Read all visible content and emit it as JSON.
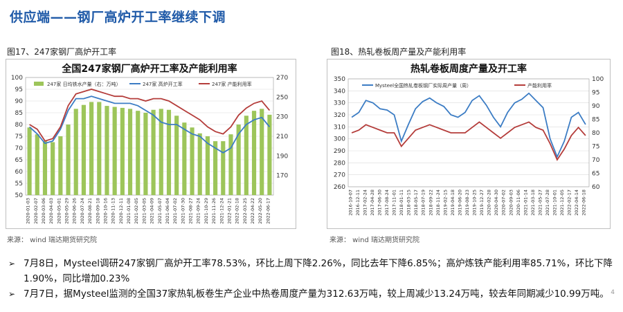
{
  "slide": {
    "title": "供应端——钢厂高炉开工率继续下调",
    "page_number": "4"
  },
  "left_figure": {
    "caption": "图17、247家钢厂高炉开工率",
    "source": "来源：  wind    瑞达期货研究院"
  },
  "right_figure": {
    "caption": "图18、热轧卷板周产量及产能利用率",
    "source": "来源：  wind    瑞达期货研究院"
  },
  "bullets": [
    "7月8日，Mysteel调研247家钢厂高炉开工率78.53%，环比上周下降2.26%，同比去年下降6.85%；高炉炼铁产能利用率85.71%，环比下降1.90%，同比增加0.23%",
    "7月7日，据Mysteel监测的全国37家热轧板卷生产企业中热卷周度产量为312.63万吨，较上周减少13.24万吨，较去年同期减少10.99万吨。"
  ],
  "colors": {
    "title_blue": "#1f5aa8",
    "bar_green": "#9dc55a",
    "line_blue": "#3b7cc4",
    "line_red": "#b43c3a"
  },
  "chart_data": [
    {
      "type": "bar+line",
      "title": "全国247家钢厂高炉开工率及产能利用率",
      "legend": [
        "247家 日均铁水产量（右：万吨）",
        "247家 高炉开工率",
        "247家 产能利用率"
      ],
      "legend_placement": "top",
      "y_left": {
        "ticks": [
          50,
          55,
          60,
          65,
          70,
          75,
          80,
          85,
          90,
          95,
          100
        ],
        "range": [
          50,
          100
        ]
      },
      "y_right": {
        "ticks": [
          170,
          190,
          210,
          230,
          250,
          270
        ],
        "range": [
          150,
          270
        ]
      },
      "x_ticks": [
        "2020-01-03",
        "2020-02-07",
        "2020-03-06",
        "2020-04-03",
        "2020-05-01",
        "2020-05-29",
        "2020-06-26",
        "2020-07-24",
        "2020-08-21",
        "2020-09-18",
        "2020-10-16",
        "2020-11-13",
        "2020-12-11",
        "2021-01-08",
        "2021-02-05",
        "2021-03-05",
        "2021-04-09",
        "2021-05-07",
        "2021-06-04",
        "2021-07-02",
        "2021-07-30",
        "2021-08-27",
        "2021-09-24",
        "2021-10-29",
        "2021-11-26",
        "2021-12-24",
        "2022-01-21",
        "2022-02-18",
        "2022-03-25",
        "2022-04-22",
        "2022-05-20",
        "2022-06-17"
      ],
      "series": [
        {
          "name": "247家 日均铁水产量（右：万吨）",
          "axis": "right",
          "values": [
            219,
            212,
            205,
            204,
            210,
            222,
            238,
            242,
            245,
            245,
            241,
            240,
            239,
            238,
            236,
            234,
            237,
            238,
            237,
            231,
            224,
            219,
            213,
            210,
            205,
            205,
            212,
            222,
            231,
            236,
            238,
            232
          ]
        },
        {
          "name": "247家 高炉开工率",
          "axis": "left",
          "values": [
            79,
            76,
            72,
            73,
            78,
            86,
            91,
            91,
            92,
            91,
            90,
            89,
            89,
            89,
            88,
            86,
            84,
            81,
            80,
            80,
            78,
            76,
            75,
            72,
            70,
            68,
            70,
            76,
            80,
            82,
            83,
            79
          ]
        },
        {
          "name": "247家 产能利用率",
          "axis": "left",
          "values": [
            80,
            78,
            73,
            74,
            79,
            88,
            93,
            94,
            95,
            94,
            93,
            92,
            92,
            91,
            91,
            90,
            91,
            91,
            90,
            88,
            86,
            84,
            82,
            79,
            77,
            76,
            79,
            84,
            87,
            89,
            90,
            86
          ]
        }
      ]
    },
    {
      "type": "line",
      "title": "热轧卷板周度产量及开工率",
      "legend": [
        "Mysteel全国热轧卷板钢厂实际周产量（周）",
        "产能利用率"
      ],
      "legend_placement": "top",
      "y_left": {
        "ticks": [
          260,
          270,
          280,
          290,
          300,
          310,
          320,
          330,
          340,
          350
        ],
        "range": [
          260,
          350
        ]
      },
      "y_right": {
        "ticks": [
          60,
          65,
          70,
          75,
          80,
          85,
          90,
          95,
          100
        ],
        "range": [
          60,
          100
        ]
      },
      "x_ticks": [
        "2016-10-07",
        "2016-12-11",
        "2017-02-24",
        "2017-04-28",
        "2017-06-30",
        "2017-08-24",
        "2017-11-01",
        "2018-01-11",
        "2018-03-15",
        "2018-05-17",
        "2018-07-19",
        "2018-09-22",
        "2018-11-24",
        "2019-02-15",
        "2019-04-18",
        "2019-06-20",
        "2019-08-23",
        "2019-10-25",
        "2019-12-27",
        "2020-02-28",
        "2020-04-30",
        "2020-07-02",
        "2020-09-03",
        "2020-11-06",
        "2021-01-14",
        "2021-03-18",
        "2021-05-27",
        "2021-07-28",
        "2021-10-01",
        "2021-12-05",
        "2022-02-17",
        "2022-04-14",
        "2022-06-18"
      ],
      "series": [
        {
          "name": "Mysteel全国热轧卷板钢厂实际周产量（周）",
          "axis": "left",
          "values": [
            318,
            322,
            332,
            330,
            325,
            324,
            320,
            298,
            312,
            325,
            331,
            334,
            330,
            327,
            320,
            318,
            322,
            332,
            336,
            328,
            318,
            310,
            322,
            330,
            333,
            338,
            332,
            326,
            300,
            285,
            298,
            318,
            322,
            312
          ]
        },
        {
          "name": "产能利用率",
          "axis": "right",
          "values": [
            80,
            81,
            83,
            82,
            81,
            80,
            80,
            75,
            78,
            81,
            82,
            83,
            82,
            81,
            80,
            80,
            80,
            82,
            84,
            82,
            80,
            78,
            80,
            82,
            83,
            84,
            82,
            81,
            76,
            70,
            74,
            79,
            82,
            79
          ]
        }
      ]
    }
  ]
}
